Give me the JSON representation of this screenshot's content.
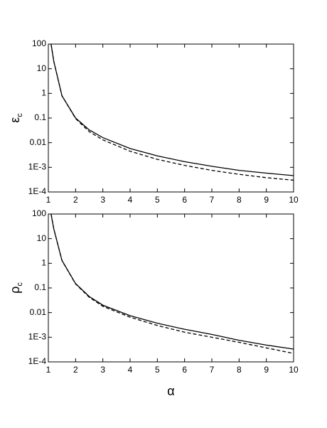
{
  "chart_data": [
    {
      "type": "line",
      "log_y": true,
      "ylabel": {
        "symbol": "ε",
        "subscript": "c"
      },
      "xlim": [
        1,
        10
      ],
      "xticks": [
        1,
        2,
        3,
        4,
        5,
        6,
        7,
        8,
        9,
        10
      ],
      "ylim": [
        0.0001,
        100
      ],
      "yticks": [
        {
          "value": 0.0001,
          "label": "1E-4"
        },
        {
          "value": 0.001,
          "label": "1E-3"
        },
        0.01,
        0.1,
        1,
        10,
        100
      ],
      "x": [
        1.1,
        1.2,
        1.5,
        2,
        2.5,
        3,
        4,
        5,
        6,
        7,
        8,
        9,
        10
      ],
      "series": [
        {
          "color": "#000000",
          "dash": false,
          "values": [
            100,
            20,
            0.8,
            0.1,
            0.033,
            0.016,
            0.0058,
            0.0029,
            0.0017,
            0.0011,
            0.00075,
            0.00058,
            0.00046
          ]
        },
        {
          "color": "#000000",
          "dash": true,
          "values": [
            100,
            20,
            0.8,
            0.095,
            0.028,
            0.013,
            0.0045,
            0.0021,
            0.0012,
            0.00075,
            0.00052,
            0.00038,
            0.0003
          ]
        }
      ]
    },
    {
      "type": "line",
      "log_y": true,
      "ylabel": {
        "symbol": "ρ",
        "subscript": "c"
      },
      "xlabel": "α",
      "xlim": [
        1,
        10
      ],
      "xticks": [
        1,
        2,
        3,
        4,
        5,
        6,
        7,
        8,
        9,
        10
      ],
      "ylim": [
        0.0001,
        100
      ],
      "yticks": [
        {
          "value": 0.0001,
          "label": "1E-4"
        },
        {
          "value": 0.001,
          "label": "1E-3"
        },
        0.01,
        0.1,
        1,
        10,
        100
      ],
      "x": [
        1.1,
        1.2,
        1.5,
        2,
        2.5,
        3,
        4,
        5,
        6,
        7,
        8,
        9,
        10
      ],
      "series": [
        {
          "color": "#000000",
          "dash": false,
          "values": [
            100,
            25,
            1.3,
            0.15,
            0.045,
            0.02,
            0.0075,
            0.0037,
            0.0021,
            0.0013,
            0.00075,
            0.00048,
            0.00033
          ]
        },
        {
          "color": "#000000",
          "dash": true,
          "values": [
            100,
            25,
            1.3,
            0.145,
            0.042,
            0.018,
            0.0065,
            0.003,
            0.0016,
            0.001,
            0.00062,
            0.00037,
            0.00022
          ]
        }
      ]
    }
  ]
}
